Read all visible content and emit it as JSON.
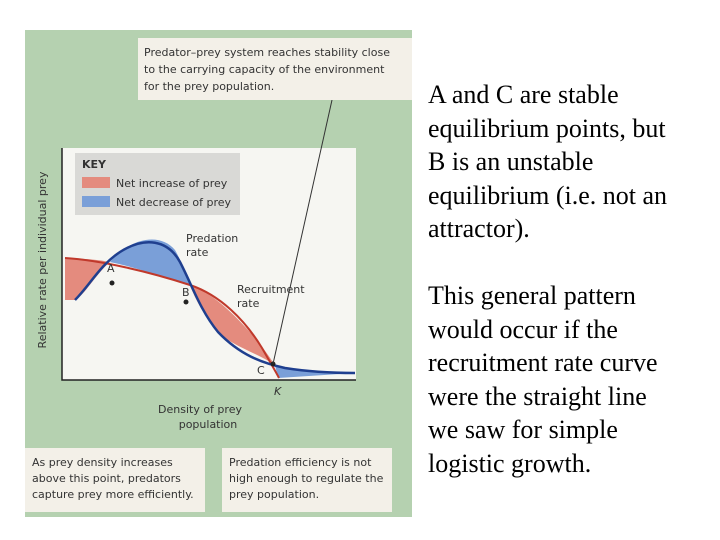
{
  "figure": {
    "top_callout": [
      "Predator–prey system reaches stability close",
      "to the carrying capacity of the environment",
      "for the prey population."
    ],
    "key": {
      "title": "KEY",
      "items": [
        "Net increase of prey",
        "Net decrease of prey"
      ]
    },
    "y_axis_label": "Relative rate per individual prey",
    "x_axis_label": [
      "Density of prey",
      "population"
    ],
    "predation_label": [
      "Predation",
      "rate"
    ],
    "recruitment_label": [
      "Recruitment",
      "rate"
    ],
    "points": [
      "A",
      "B",
      "C",
      "K"
    ],
    "bottom_left_callout": [
      "As prey density increases",
      "above this point, predators",
      "capture prey more efficiently."
    ],
    "bottom_right_callout": [
      "Predation efficiency is not",
      "high enough to regulate the",
      "prey population."
    ]
  },
  "text": {
    "paragraph_1": [
      "A and C are stable",
      "equilibrium points, but",
      "B is an unstable",
      "equilibrium (i.e. not an",
      "attractor)."
    ],
    "paragraph_2": [
      "This general pattern",
      "would occur if the",
      "recruitment rate curve",
      "were the straight line",
      "we saw for simple",
      "logistic growth."
    ]
  }
}
